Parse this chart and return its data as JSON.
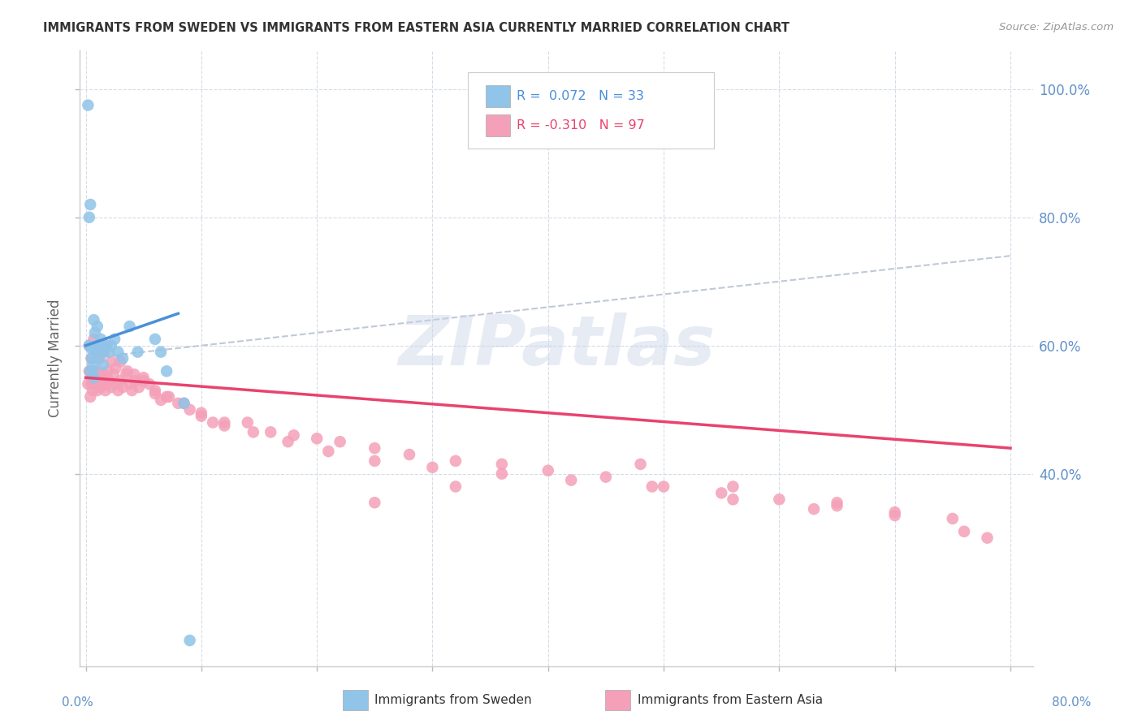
{
  "title": "IMMIGRANTS FROM SWEDEN VS IMMIGRANTS FROM EASTERN ASIA CURRENTLY MARRIED CORRELATION CHART",
  "source": "Source: ZipAtlas.com",
  "ylabel": "Currently Married",
  "color_sweden": "#90c4e8",
  "color_eastern_asia": "#f4a0b8",
  "color_sweden_line": "#4a90d9",
  "color_eastern_asia_line": "#e8436e",
  "color_dashed_line": "#c0c8d8",
  "watermark": "ZIPatlas",
  "sweden_x": [
    0.002,
    0.003,
    0.004,
    0.004,
    0.005,
    0.005,
    0.006,
    0.006,
    0.007,
    0.007,
    0.008,
    0.009,
    0.01,
    0.01,
    0.011,
    0.012,
    0.013,
    0.015,
    0.016,
    0.018,
    0.02,
    0.022,
    0.025,
    0.028,
    0.032,
    0.038,
    0.045,
    0.06,
    0.065,
    0.07,
    0.085,
    0.09,
    0.003
  ],
  "sweden_y": [
    0.975,
    0.6,
    0.56,
    0.82,
    0.595,
    0.58,
    0.57,
    0.56,
    0.64,
    0.55,
    0.62,
    0.59,
    0.6,
    0.63,
    0.58,
    0.6,
    0.61,
    0.57,
    0.59,
    0.6,
    0.59,
    0.6,
    0.61,
    0.59,
    0.58,
    0.63,
    0.59,
    0.61,
    0.59,
    0.56,
    0.51,
    0.14,
    0.8
  ],
  "eastern_asia_x": [
    0.002,
    0.003,
    0.004,
    0.004,
    0.005,
    0.005,
    0.006,
    0.006,
    0.007,
    0.007,
    0.008,
    0.009,
    0.01,
    0.011,
    0.012,
    0.013,
    0.014,
    0.015,
    0.016,
    0.017,
    0.018,
    0.019,
    0.02,
    0.022,
    0.024,
    0.026,
    0.028,
    0.03,
    0.032,
    0.035,
    0.038,
    0.04,
    0.043,
    0.046,
    0.05,
    0.055,
    0.06,
    0.065,
    0.07,
    0.08,
    0.09,
    0.1,
    0.11,
    0.12,
    0.14,
    0.16,
    0.18,
    0.2,
    0.22,
    0.25,
    0.28,
    0.32,
    0.36,
    0.4,
    0.45,
    0.5,
    0.55,
    0.6,
    0.65,
    0.7,
    0.75,
    0.78,
    0.003,
    0.005,
    0.007,
    0.009,
    0.012,
    0.015,
    0.018,
    0.022,
    0.026,
    0.03,
    0.036,
    0.042,
    0.05,
    0.06,
    0.072,
    0.085,
    0.1,
    0.12,
    0.145,
    0.175,
    0.21,
    0.25,
    0.3,
    0.36,
    0.42,
    0.49,
    0.56,
    0.63,
    0.7,
    0.76,
    0.25,
    0.32,
    0.48,
    0.56,
    0.65
  ],
  "eastern_asia_y": [
    0.54,
    0.56,
    0.52,
    0.56,
    0.55,
    0.54,
    0.53,
    0.56,
    0.54,
    0.56,
    0.55,
    0.54,
    0.53,
    0.56,
    0.545,
    0.535,
    0.545,
    0.555,
    0.54,
    0.53,
    0.55,
    0.56,
    0.545,
    0.535,
    0.555,
    0.54,
    0.53,
    0.545,
    0.535,
    0.555,
    0.54,
    0.53,
    0.545,
    0.535,
    0.55,
    0.54,
    0.525,
    0.515,
    0.52,
    0.51,
    0.5,
    0.49,
    0.48,
    0.475,
    0.48,
    0.465,
    0.46,
    0.455,
    0.45,
    0.44,
    0.43,
    0.42,
    0.415,
    0.405,
    0.395,
    0.38,
    0.37,
    0.36,
    0.35,
    0.34,
    0.33,
    0.3,
    0.6,
    0.58,
    0.61,
    0.59,
    0.58,
    0.59,
    0.6,
    0.575,
    0.565,
    0.575,
    0.56,
    0.555,
    0.545,
    0.53,
    0.52,
    0.51,
    0.495,
    0.48,
    0.465,
    0.45,
    0.435,
    0.42,
    0.41,
    0.4,
    0.39,
    0.38,
    0.36,
    0.345,
    0.335,
    0.31,
    0.355,
    0.38,
    0.415,
    0.38,
    0.355
  ],
  "sweden_line_x": [
    0.0,
    0.08
  ],
  "sweden_line_y": [
    0.6,
    0.65
  ],
  "ea_line_x": [
    0.0,
    0.8
  ],
  "ea_line_y": [
    0.55,
    0.44
  ],
  "dash_line_x": [
    0.0,
    0.8
  ],
  "dash_line_y": [
    0.58,
    0.74
  ],
  "xlim": [
    -0.005,
    0.82
  ],
  "ylim": [
    0.1,
    1.06
  ],
  "ytick_vals": [
    0.4,
    0.6,
    0.8,
    1.0
  ],
  "ytick_labels": [
    "40.0%",
    "60.0%",
    "80.0%",
    "100.0%"
  ],
  "xtick_vals": [
    0.0,
    0.1,
    0.2,
    0.3,
    0.4,
    0.5,
    0.6,
    0.7,
    0.8
  ]
}
